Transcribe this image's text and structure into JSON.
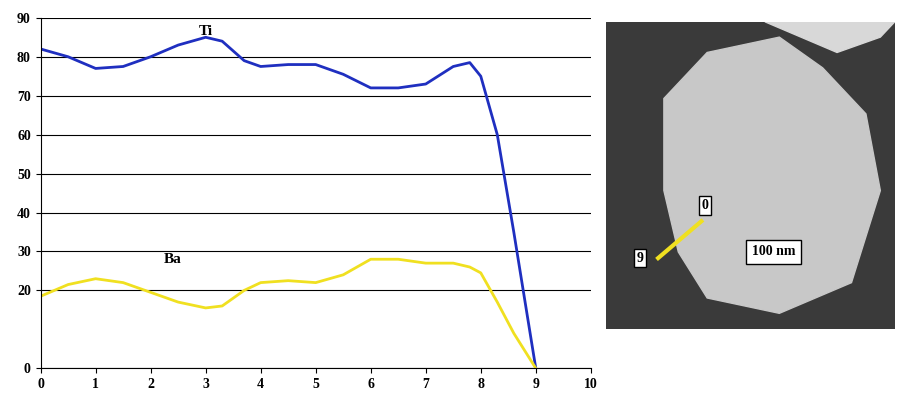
{
  "chart_data": {
    "type": "line",
    "x": [
      0,
      0.5,
      1,
      1.5,
      2,
      2.5,
      3,
      3.3,
      3.7,
      4,
      4.5,
      5,
      5.5,
      6,
      6.5,
      7,
      7.5,
      7.8,
      8,
      8.3,
      8.6,
      9
    ],
    "series": [
      {
        "name": "Ti",
        "color": "#1f2fc0",
        "values": [
          82,
          80,
          77,
          77.5,
          80,
          83,
          85,
          84,
          79,
          77.5,
          78,
          78,
          75.5,
          72,
          72,
          73,
          77.5,
          78.5,
          75,
          60,
          35,
          0
        ]
      },
      {
        "name": "Ba",
        "color": "#f0e020",
        "values": [
          18.5,
          21.5,
          23,
          22,
          19.5,
          17,
          15.5,
          16,
          20,
          22,
          22.5,
          22,
          24,
          28,
          28,
          27,
          27,
          26,
          24.5,
          17,
          9,
          0
        ]
      }
    ],
    "xlim": [
      0,
      10
    ],
    "xticks": [
      0,
      1,
      2,
      3,
      4,
      5,
      6,
      7,
      8,
      9,
      10
    ],
    "ylim": [
      0,
      90
    ],
    "yticks": [
      0,
      20,
      30,
      40,
      50,
      60,
      70,
      80,
      90
    ],
    "grid": true
  },
  "image": {
    "line_start_label": "0",
    "line_end_label": "9",
    "scale_bar": "100 nm"
  }
}
